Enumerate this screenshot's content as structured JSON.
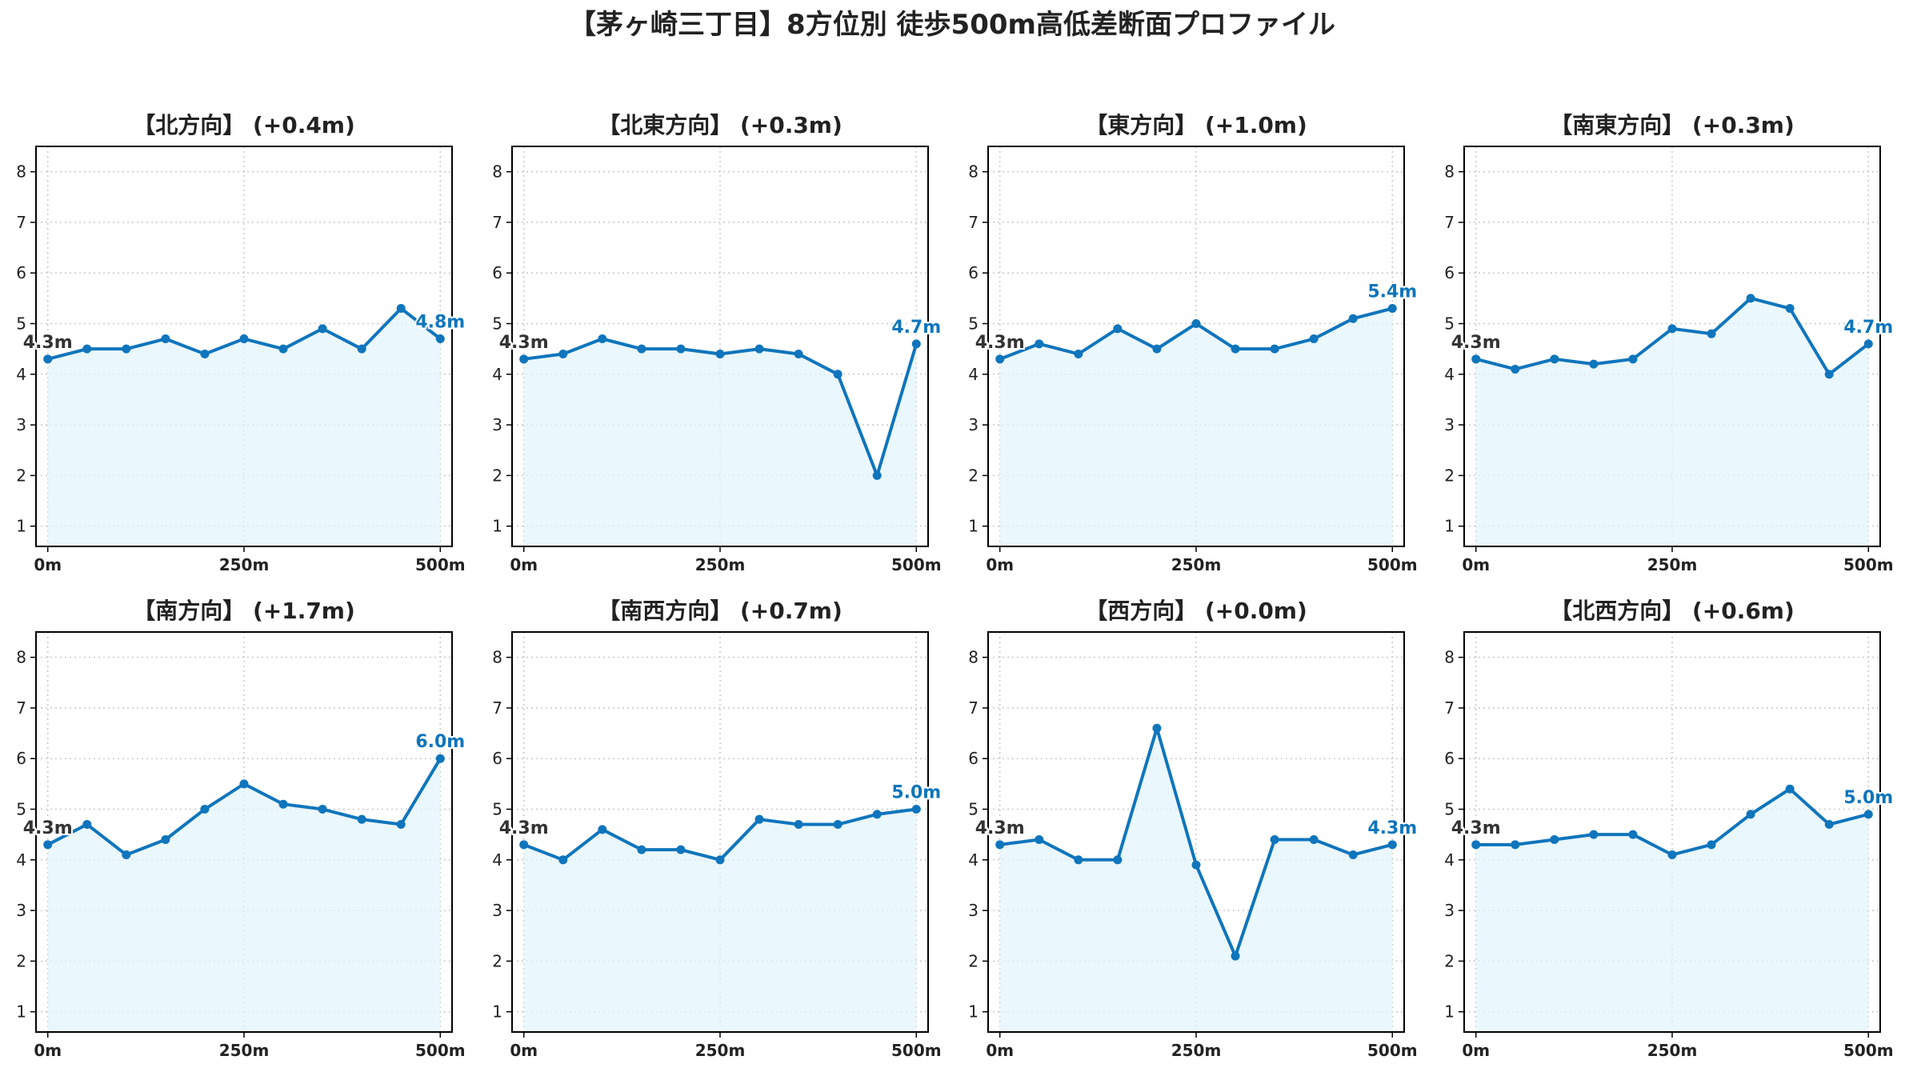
{
  "title": "【茅ヶ崎三丁目】8方位別 徒歩500m高低差断面プロファイル",
  "colors": {
    "line": "#0F75BC",
    "fill": "#E3F4FB",
    "grid": "#C8C8C8",
    "axis": "#000000",
    "text": "#222222",
    "start_label": "#333333",
    "end_label": "#0F75BC"
  },
  "chart_data": [
    {
      "type": "line",
      "title": "【北方向】 (+0.4m)",
      "x": [
        0,
        50,
        100,
        150,
        200,
        250,
        300,
        350,
        400,
        450,
        500
      ],
      "values": [
        4.3,
        4.5,
        4.5,
        4.7,
        4.4,
        4.7,
        4.5,
        4.9,
        4.5,
        5.3,
        4.7
      ],
      "start_label": "4.3m",
      "end_label": "4.8m",
      "xticks": [
        "0m",
        "250m",
        "500m"
      ],
      "yticks": [
        1,
        2,
        3,
        4,
        5,
        6,
        7,
        8
      ],
      "xlim": [
        -15,
        515
      ],
      "ylim": [
        0.6,
        8.5
      ],
      "grid": true
    },
    {
      "type": "line",
      "title": "【北東方向】 (+0.3m)",
      "x": [
        0,
        50,
        100,
        150,
        200,
        250,
        300,
        350,
        400,
        450,
        500
      ],
      "values": [
        4.3,
        4.4,
        4.7,
        4.5,
        4.5,
        4.4,
        4.5,
        4.4,
        4.0,
        2.0,
        4.6
      ],
      "start_label": "4.3m",
      "end_label": "4.7m",
      "xticks": [
        "0m",
        "250m",
        "500m"
      ],
      "yticks": [
        1,
        2,
        3,
        4,
        5,
        6,
        7,
        8
      ],
      "xlim": [
        -15,
        515
      ],
      "ylim": [
        0.6,
        8.5
      ],
      "grid": true
    },
    {
      "type": "line",
      "title": "【東方向】 (+1.0m)",
      "x": [
        0,
        50,
        100,
        150,
        200,
        250,
        300,
        350,
        400,
        450,
        500
      ],
      "values": [
        4.3,
        4.6,
        4.4,
        4.9,
        4.5,
        5.0,
        4.5,
        4.5,
        4.7,
        5.1,
        5.3
      ],
      "start_label": "4.3m",
      "end_label": "5.4m",
      "xticks": [
        "0m",
        "250m",
        "500m"
      ],
      "yticks": [
        1,
        2,
        3,
        4,
        5,
        6,
        7,
        8
      ],
      "xlim": [
        -15,
        515
      ],
      "ylim": [
        0.6,
        8.5
      ],
      "grid": true
    },
    {
      "type": "line",
      "title": "【南東方向】 (+0.3m)",
      "x": [
        0,
        50,
        100,
        150,
        200,
        250,
        300,
        350,
        400,
        450,
        500
      ],
      "values": [
        4.3,
        4.1,
        4.3,
        4.2,
        4.3,
        4.9,
        4.8,
        5.5,
        5.3,
        4.0,
        4.6
      ],
      "start_label": "4.3m",
      "end_label": "4.7m",
      "xticks": [
        "0m",
        "250m",
        "500m"
      ],
      "yticks": [
        1,
        2,
        3,
        4,
        5,
        6,
        7,
        8
      ],
      "xlim": [
        -15,
        515
      ],
      "ylim": [
        0.6,
        8.5
      ],
      "grid": true
    },
    {
      "type": "line",
      "title": "【南方向】 (+1.7m)",
      "x": [
        0,
        50,
        100,
        150,
        200,
        250,
        300,
        350,
        400,
        450,
        500
      ],
      "values": [
        4.3,
        4.7,
        4.1,
        4.4,
        5.0,
        5.5,
        5.1,
        5.0,
        4.8,
        4.7,
        6.0
      ],
      "start_label": "4.3m",
      "end_label": "6.0m",
      "xticks": [
        "0m",
        "250m",
        "500m"
      ],
      "yticks": [
        1,
        2,
        3,
        4,
        5,
        6,
        7,
        8
      ],
      "xlim": [
        -15,
        515
      ],
      "ylim": [
        0.6,
        8.5
      ],
      "grid": true
    },
    {
      "type": "line",
      "title": "【南西方向】 (+0.7m)",
      "x": [
        0,
        50,
        100,
        150,
        200,
        250,
        300,
        350,
        400,
        450,
        500
      ],
      "values": [
        4.3,
        4.0,
        4.6,
        4.2,
        4.2,
        4.0,
        4.8,
        4.7,
        4.7,
        4.9,
        5.0
      ],
      "start_label": "4.3m",
      "end_label": "5.0m",
      "xticks": [
        "0m",
        "250m",
        "500m"
      ],
      "yticks": [
        1,
        2,
        3,
        4,
        5,
        6,
        7,
        8
      ],
      "xlim": [
        -15,
        515
      ],
      "ylim": [
        0.6,
        8.5
      ],
      "grid": true
    },
    {
      "type": "line",
      "title": "【西方向】 (+0.0m)",
      "x": [
        0,
        50,
        100,
        150,
        200,
        250,
        300,
        350,
        400,
        450,
        500
      ],
      "values": [
        4.3,
        4.4,
        4.0,
        4.0,
        6.6,
        3.9,
        2.1,
        4.4,
        4.4,
        4.1,
        4.3
      ],
      "start_label": "4.3m",
      "end_label": "4.3m",
      "xticks": [
        "0m",
        "250m",
        "500m"
      ],
      "yticks": [
        1,
        2,
        3,
        4,
        5,
        6,
        7,
        8
      ],
      "xlim": [
        -15,
        515
      ],
      "ylim": [
        0.6,
        8.5
      ],
      "grid": true
    },
    {
      "type": "line",
      "title": "【北西方向】 (+0.6m)",
      "x": [
        0,
        50,
        100,
        150,
        200,
        250,
        300,
        350,
        400,
        450,
        500
      ],
      "values": [
        4.3,
        4.3,
        4.4,
        4.5,
        4.5,
        4.1,
        4.3,
        4.9,
        5.4,
        4.7,
        4.9
      ],
      "start_label": "4.3m",
      "end_label": "5.0m",
      "xticks": [
        "0m",
        "250m",
        "500m"
      ],
      "yticks": [
        1,
        2,
        3,
        4,
        5,
        6,
        7,
        8
      ],
      "xlim": [
        -15,
        515
      ],
      "ylim": [
        0.6,
        8.5
      ],
      "grid": true
    }
  ]
}
